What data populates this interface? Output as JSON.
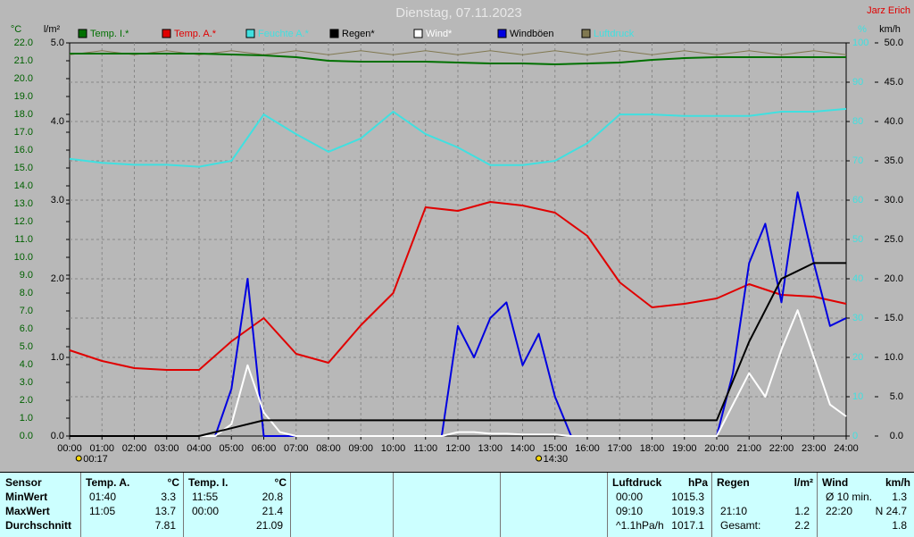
{
  "chart_data": {
    "type": "line",
    "title": "Dienstag, 07.11.2023",
    "author": "Jarz Erich",
    "axis_units": {
      "y": "°C",
      "y2": "l/m²",
      "y3": "%",
      "y4": "km/h"
    },
    "xlim": [
      0,
      24
    ],
    "xticks": [
      {
        "value": 0,
        "label": "00:00"
      },
      {
        "value": 1,
        "label": "01:00"
      },
      {
        "value": 2,
        "label": "02:00"
      },
      {
        "value": 3,
        "label": "03:00"
      },
      {
        "value": 4,
        "label": "04:00"
      },
      {
        "value": 5,
        "label": "05:00"
      },
      {
        "value": 6,
        "label": "06:00"
      },
      {
        "value": 7,
        "label": "07:00"
      },
      {
        "value": 8,
        "label": "08:00"
      },
      {
        "value": 9,
        "label": "09:00"
      },
      {
        "value": 10,
        "label": "10:00"
      },
      {
        "value": 11,
        "label": "11:00"
      },
      {
        "value": 12,
        "label": "12:00"
      },
      {
        "value": 13,
        "label": "13:00"
      },
      {
        "value": 14,
        "label": "14:00"
      },
      {
        "value": 15,
        "label": "15:00"
      },
      {
        "value": 16,
        "label": "16:00"
      },
      {
        "value": 17,
        "label": "17:00"
      },
      {
        "value": 18,
        "label": "18:00"
      },
      {
        "value": 19,
        "label": "19:00"
      },
      {
        "value": 20,
        "label": "20:00"
      },
      {
        "value": 21,
        "label": "21:00"
      },
      {
        "value": 22,
        "label": "22:00"
      },
      {
        "value": 23,
        "label": "23:00"
      },
      {
        "value": 24,
        "label": "24:00"
      }
    ],
    "ylim": [
      0,
      22
    ],
    "yticks": [
      {
        "value": 0,
        "label": "0.0"
      },
      {
        "value": 1,
        "label": "1.0"
      },
      {
        "value": 2,
        "label": "2.0"
      },
      {
        "value": 3,
        "label": "3.0"
      },
      {
        "value": 4,
        "label": "4.0"
      },
      {
        "value": 5,
        "label": "5.0"
      },
      {
        "value": 6,
        "label": "6.0"
      },
      {
        "value": 7,
        "label": "7.0"
      },
      {
        "value": 8,
        "label": "8.0"
      },
      {
        "value": 9,
        "label": "9.0"
      },
      {
        "value": 10,
        "label": "10.0"
      },
      {
        "value": 11,
        "label": "11.0"
      },
      {
        "value": 12,
        "label": "12.0"
      },
      {
        "value": 13,
        "label": "13.0"
      },
      {
        "value": 14,
        "label": "14.0"
      },
      {
        "value": 15,
        "label": "15.0"
      },
      {
        "value": 16,
        "label": "16.0"
      },
      {
        "value": 17,
        "label": "17.0"
      },
      {
        "value": 18,
        "label": "18.0"
      },
      {
        "value": 19,
        "label": "19.0"
      },
      {
        "value": 20,
        "label": "20.0"
      },
      {
        "value": 21,
        "label": "21.0"
      },
      {
        "value": 22,
        "label": "22.0"
      }
    ],
    "y2lim": [
      0,
      5
    ],
    "y2ticks": [
      {
        "value": 0,
        "label": "0.0"
      },
      {
        "value": 1,
        "label": "1.0"
      },
      {
        "value": 2,
        "label": "2.0"
      },
      {
        "value": 3,
        "label": "3.0"
      },
      {
        "value": 4,
        "label": "4.0"
      },
      {
        "value": 5,
        "label": "5.0"
      }
    ],
    "y3lim": [
      0,
      100
    ],
    "y3ticks": [
      0,
      10,
      20,
      30,
      40,
      50,
      60,
      70,
      80,
      90,
      100
    ],
    "y4lim": [
      0,
      50
    ],
    "y4ticks": [
      {
        "value": 0,
        "label": "0.0"
      },
      {
        "value": 5,
        "label": "5.0"
      },
      {
        "value": 10,
        "label": "10.0"
      },
      {
        "value": 15,
        "label": "15.0"
      },
      {
        "value": 20,
        "label": "20.0"
      },
      {
        "value": 25,
        "label": "25.0"
      },
      {
        "value": 30,
        "label": "30.0"
      },
      {
        "value": 35,
        "label": "35.0"
      },
      {
        "value": 40,
        "label": "40.0"
      },
      {
        "value": 45,
        "label": "45.0"
      },
      {
        "value": 50,
        "label": "50.0"
      }
    ],
    "grid": true,
    "series": [
      {
        "name": "Temp. I.*",
        "color": "#007000",
        "axis": "y",
        "x": [
          0,
          1,
          2,
          3,
          4,
          5,
          6,
          7,
          8,
          9,
          10,
          11,
          12,
          13,
          14,
          15,
          16,
          17,
          18,
          19,
          20,
          21,
          22,
          23,
          24
        ],
        "values": [
          21.4,
          21.4,
          21.4,
          21.4,
          21.4,
          21.35,
          21.3,
          21.2,
          21.0,
          20.95,
          20.95,
          20.95,
          20.9,
          20.85,
          20.85,
          20.8,
          20.85,
          20.9,
          21.05,
          21.15,
          21.2,
          21.2,
          21.2,
          21.2,
          21.2
        ]
      },
      {
        "name": "Temp. A.*",
        "color": "#e00000",
        "axis": "y",
        "x": [
          0,
          1,
          2,
          3,
          4,
          5,
          6,
          7,
          8,
          9,
          10,
          11,
          12,
          13,
          14,
          15,
          16,
          17,
          18,
          19,
          20,
          21,
          22,
          23,
          24
        ],
        "values": [
          4.8,
          4.2,
          3.8,
          3.7,
          3.7,
          5.3,
          6.6,
          4.6,
          4.1,
          6.2,
          8.0,
          12.8,
          12.6,
          13.1,
          12.9,
          12.5,
          11.2,
          8.6,
          7.2,
          7.4,
          7.7,
          8.5,
          7.9,
          7.8,
          7.4
        ]
      },
      {
        "name": "Feuchte A.*",
        "color": "#40e0e0",
        "axis": "y3",
        "x": [
          0,
          1,
          2,
          3,
          4,
          5,
          6,
          7,
          8,
          9,
          10,
          11,
          12,
          13,
          14,
          15,
          16,
          17,
          18,
          19,
          20,
          21,
          22,
          23,
          24
        ],
        "values": [
          70.5,
          69.5,
          69,
          69,
          68.5,
          70,
          81.8,
          76.8,
          72.3,
          75.7,
          82.5,
          76.8,
          73.4,
          68.9,
          68.9,
          70,
          74.5,
          81.8,
          81.8,
          81.4,
          81.4,
          81.4,
          82.5,
          82.5,
          83.2
        ]
      },
      {
        "name": "Regen*",
        "color": "#000000",
        "axis": "y2",
        "x": [
          0,
          1,
          2,
          3,
          4,
          5,
          6,
          7,
          8,
          9,
          10,
          11,
          12,
          13,
          14,
          15,
          16,
          17,
          18,
          19,
          20,
          21,
          22,
          23,
          24
        ],
        "values": [
          0,
          0,
          0,
          0,
          0,
          0.1,
          0.2,
          0.2,
          0.2,
          0.2,
          0.2,
          0.2,
          0.2,
          0.2,
          0.2,
          0.2,
          0.2,
          0.2,
          0.2,
          0.2,
          0.2,
          1.2,
          2.0,
          2.2,
          2.2
        ]
      },
      {
        "name": "Wind*",
        "color": "#ffffff",
        "axis": "y4",
        "x": [
          0,
          0.5,
          1,
          1.5,
          2,
          2.5,
          3,
          3.5,
          4,
          4.5,
          5,
          5.5,
          6,
          6.5,
          7,
          7.5,
          8,
          8.5,
          9,
          9.5,
          10,
          10.5,
          11,
          11.5,
          12,
          12.5,
          13,
          13.5,
          14,
          14.5,
          15,
          15.5,
          16,
          16.5,
          17,
          17.5,
          18,
          18.5,
          19,
          19.5,
          20,
          20.5,
          21,
          21.5,
          22,
          22.5,
          23,
          23.5,
          24
        ],
        "values": [
          0,
          0,
          0,
          0,
          0,
          0,
          0,
          0,
          0,
          0,
          1.5,
          9,
          3,
          0.5,
          0,
          0,
          0,
          0,
          0,
          0,
          0,
          0,
          0,
          0,
          0.5,
          0.5,
          0.3,
          0.3,
          0.2,
          0.2,
          0.2,
          0,
          0,
          0,
          0,
          0,
          0,
          0,
          0,
          0,
          0,
          4,
          8,
          5,
          11,
          16,
          10,
          4,
          2.5
        ]
      },
      {
        "name": "Windböen",
        "color": "#0000e0",
        "axis": "y4",
        "x": [
          0,
          0.5,
          1,
          1.5,
          2,
          2.5,
          3,
          3.5,
          4,
          4.5,
          5,
          5.5,
          6,
          6.5,
          7,
          7.5,
          8,
          8.5,
          9,
          9.5,
          10,
          10.5,
          11,
          11.5,
          12,
          12.5,
          13,
          13.5,
          14,
          14.5,
          15,
          15.5,
          16,
          16.5,
          17,
          17.5,
          18,
          18.5,
          19,
          19.5,
          20,
          20.5,
          21,
          21.5,
          22,
          22.5,
          23,
          23.5,
          24
        ],
        "values": [
          0,
          0,
          0,
          0,
          0,
          0,
          0,
          0,
          0,
          0,
          6,
          20,
          0,
          0,
          0,
          0,
          0,
          0,
          0,
          0,
          0,
          0,
          0,
          0,
          14,
          10,
          15,
          17,
          9,
          13,
          5,
          0,
          0,
          0,
          0,
          0,
          0,
          0,
          0,
          0,
          0,
          8,
          22,
          27,
          17,
          31,
          22,
          14,
          15
        ]
      },
      {
        "name": "Luftdruck",
        "color": "#807850",
        "axis": "y3",
        "x": [
          0,
          1,
          2,
          3,
          4,
          5,
          6,
          7,
          8,
          9,
          10,
          11,
          12,
          13,
          14,
          15,
          16,
          17,
          18,
          19,
          20,
          21,
          22,
          23,
          24
        ],
        "values": [
          97,
          98,
          97,
          98,
          97,
          98,
          97,
          98,
          97,
          98,
          97,
          98,
          97,
          98,
          97,
          98,
          97,
          98,
          97,
          98,
          97,
          98,
          97,
          98,
          97
        ]
      }
    ],
    "annotations": [
      {
        "text": "00:17",
        "x": 0.283
      },
      {
        "text": "14:30",
        "x": 14.5
      }
    ]
  },
  "table": {
    "row_labels": [
      "Sensor",
      "MinWert",
      "MaxWert",
      "Durchschnitt"
    ],
    "groups": [
      {
        "title": "Temp. A.",
        "unit": "°C",
        "rows": [
          [
            "01:40",
            3.3
          ],
          [
            "11:05",
            13.7
          ],
          [
            null,
            7.81
          ]
        ]
      },
      {
        "title": "Temp. I.",
        "unit": "°C",
        "rows": [
          [
            "11:55",
            20.8
          ],
          [
            "00:00",
            21.4
          ],
          [
            null,
            21.09
          ]
        ]
      },
      {
        "title": "Luftdruck",
        "unit": "hPa",
        "rows": [
          [
            "00:00",
            1015.3
          ],
          [
            "09:10",
            1019.3
          ],
          [
            "^1.1hPa/h",
            1017.1
          ]
        ]
      },
      {
        "title": "Regen",
        "unit": "l/m²",
        "rows": [
          [
            null,
            null
          ],
          [
            "21:10",
            1.2
          ],
          [
            "Gesamt:",
            2.2
          ]
        ]
      },
      {
        "title": "Wind",
        "unit": "km/h",
        "rows": [
          [
            "Ø 10 min.",
            1.3
          ],
          [
            "22:20",
            "N 24.7"
          ],
          [
            null,
            1.8
          ]
        ]
      }
    ]
  }
}
